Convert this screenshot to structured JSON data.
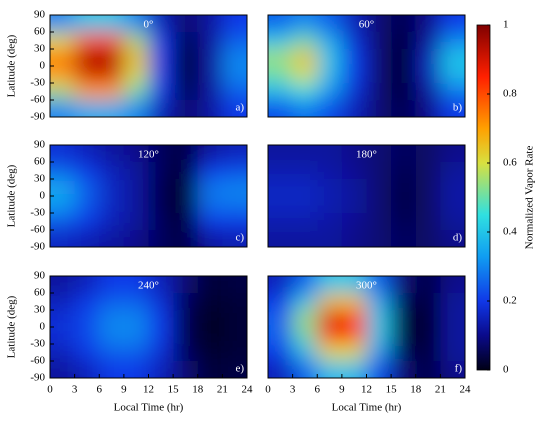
{
  "chart_data": [
    {
      "type": "heatmap",
      "title": "0°",
      "panel_label": "a)",
      "ylabel": "Latitude (deg)",
      "x": [
        1.5,
        4.5,
        7.5,
        10.5,
        13.5,
        16.5,
        19.5,
        22.5
      ],
      "y": [
        75,
        45,
        15,
        -15,
        -45,
        -75
      ],
      "xlim": [
        0,
        24
      ],
      "ylim": [
        -90,
        90
      ],
      "yticks": [
        -90,
        -60,
        -30,
        0,
        30,
        60,
        90
      ],
      "z": [
        [
          0.3,
          0.4,
          0.4,
          0.3,
          0.15,
          0.08,
          0.12,
          0.2
        ],
        [
          0.6,
          0.8,
          0.8,
          0.55,
          0.2,
          0.05,
          0.12,
          0.25
        ],
        [
          0.75,
          0.95,
          0.95,
          0.65,
          0.2,
          0.02,
          0.12,
          0.3
        ],
        [
          0.7,
          0.9,
          0.9,
          0.6,
          0.2,
          0.02,
          0.12,
          0.3
        ],
        [
          0.55,
          0.7,
          0.7,
          0.5,
          0.2,
          0.05,
          0.12,
          0.25
        ],
        [
          0.3,
          0.35,
          0.35,
          0.3,
          0.15,
          0.08,
          0.12,
          0.2
        ]
      ]
    },
    {
      "type": "heatmap",
      "title": "60°",
      "panel_label": "b)",
      "x": [
        1.5,
        4.5,
        7.5,
        10.5,
        13.5,
        16.5,
        19.5,
        22.5
      ],
      "y": [
        75,
        45,
        15,
        -15,
        -45,
        -75
      ],
      "xlim": [
        0,
        24
      ],
      "ylim": [
        -90,
        90
      ],
      "z": [
        [
          0.25,
          0.3,
          0.25,
          0.15,
          0.08,
          0.05,
          0.1,
          0.2
        ],
        [
          0.4,
          0.5,
          0.35,
          0.18,
          0.08,
          0.03,
          0.12,
          0.3
        ],
        [
          0.55,
          0.65,
          0.4,
          0.2,
          0.08,
          0.02,
          0.15,
          0.4
        ],
        [
          0.5,
          0.6,
          0.38,
          0.2,
          0.08,
          0.02,
          0.15,
          0.38
        ],
        [
          0.38,
          0.45,
          0.32,
          0.18,
          0.08,
          0.03,
          0.12,
          0.28
        ],
        [
          0.22,
          0.28,
          0.22,
          0.15,
          0.08,
          0.05,
          0.1,
          0.2
        ]
      ]
    },
    {
      "type": "heatmap",
      "title": "120°",
      "panel_label": "c)",
      "ylabel": "Latitude (deg)",
      "x": [
        1.5,
        4.5,
        7.5,
        10.5,
        13.5,
        16.5,
        19.5,
        22.5
      ],
      "y": [
        75,
        45,
        15,
        -15,
        -45,
        -75
      ],
      "xlim": [
        0,
        24
      ],
      "ylim": [
        -90,
        90
      ],
      "yticks": [
        -90,
        -60,
        -30,
        0,
        30,
        60,
        90
      ],
      "z": [
        [
          0.18,
          0.15,
          0.12,
          0.1,
          0.06,
          0.04,
          0.12,
          0.15
        ],
        [
          0.25,
          0.2,
          0.15,
          0.12,
          0.06,
          0.03,
          0.2,
          0.22
        ],
        [
          0.35,
          0.25,
          0.16,
          0.12,
          0.05,
          0.02,
          0.28,
          0.3
        ],
        [
          0.33,
          0.24,
          0.16,
          0.12,
          0.05,
          0.02,
          0.27,
          0.28
        ],
        [
          0.24,
          0.2,
          0.15,
          0.12,
          0.06,
          0.03,
          0.2,
          0.2
        ],
        [
          0.16,
          0.14,
          0.12,
          0.1,
          0.06,
          0.04,
          0.12,
          0.14
        ]
      ]
    },
    {
      "type": "heatmap",
      "title": "180°",
      "panel_label": "d)",
      "x": [
        1.5,
        4.5,
        7.5,
        10.5,
        13.5,
        16.5,
        19.5,
        22.5
      ],
      "y": [
        75,
        45,
        15,
        -15,
        -45,
        -75
      ],
      "xlim": [
        0,
        24
      ],
      "ylim": [
        -90,
        90
      ],
      "z": [
        [
          0.12,
          0.12,
          0.12,
          0.1,
          0.08,
          0.06,
          0.07,
          0.1
        ],
        [
          0.14,
          0.14,
          0.13,
          0.11,
          0.08,
          0.05,
          0.07,
          0.12
        ],
        [
          0.16,
          0.16,
          0.14,
          0.12,
          0.08,
          0.04,
          0.07,
          0.13
        ],
        [
          0.16,
          0.16,
          0.14,
          0.12,
          0.08,
          0.04,
          0.07,
          0.13
        ],
        [
          0.14,
          0.14,
          0.13,
          0.11,
          0.08,
          0.05,
          0.07,
          0.12
        ],
        [
          0.12,
          0.12,
          0.12,
          0.1,
          0.08,
          0.06,
          0.07,
          0.1
        ]
      ]
    },
    {
      "type": "heatmap",
      "title": "240°",
      "panel_label": "e)",
      "ylabel": "Latitude (deg)",
      "xlabel": "Local Time (hr)",
      "x": [
        1.5,
        4.5,
        7.5,
        10.5,
        13.5,
        16.5,
        19.5,
        22.5
      ],
      "y": [
        75,
        45,
        15,
        -15,
        -45,
        -75
      ],
      "xlim": [
        0,
        24
      ],
      "ylim": [
        -90,
        90
      ],
      "yticks": [
        -90,
        -60,
        -30,
        0,
        30,
        60,
        90
      ],
      "xticks": [
        0,
        3,
        6,
        9,
        12,
        15,
        18,
        21,
        24
      ],
      "z": [
        [
          0.12,
          0.15,
          0.2,
          0.2,
          0.15,
          0.08,
          0.03,
          0.04
        ],
        [
          0.15,
          0.2,
          0.25,
          0.25,
          0.18,
          0.06,
          0.02,
          0.03
        ],
        [
          0.18,
          0.22,
          0.3,
          0.3,
          0.2,
          0.05,
          0.01,
          0.03
        ],
        [
          0.18,
          0.22,
          0.3,
          0.3,
          0.2,
          0.05,
          0.01,
          0.03
        ],
        [
          0.15,
          0.2,
          0.25,
          0.25,
          0.18,
          0.06,
          0.02,
          0.03
        ],
        [
          0.12,
          0.15,
          0.2,
          0.2,
          0.15,
          0.08,
          0.03,
          0.04
        ]
      ]
    },
    {
      "type": "heatmap",
      "title": "300°",
      "panel_label": "f)",
      "xlabel": "Local Time (hr)",
      "x": [
        1.5,
        4.5,
        7.5,
        10.5,
        13.5,
        16.5,
        19.5,
        22.5
      ],
      "y": [
        75,
        45,
        15,
        -15,
        -45,
        -75
      ],
      "xlim": [
        0,
        24
      ],
      "ylim": [
        -90,
        90
      ],
      "xticks": [
        0,
        3,
        6,
        9,
        12,
        15,
        18,
        21,
        24
      ],
      "z": [
        [
          0.15,
          0.25,
          0.4,
          0.4,
          0.25,
          0.08,
          0.04,
          0.1
        ],
        [
          0.2,
          0.4,
          0.65,
          0.65,
          0.35,
          0.06,
          0.03,
          0.12
        ],
        [
          0.25,
          0.55,
          0.9,
          0.85,
          0.4,
          0.04,
          0.02,
          0.12
        ],
        [
          0.25,
          0.5,
          0.85,
          0.8,
          0.4,
          0.04,
          0.02,
          0.12
        ],
        [
          0.2,
          0.38,
          0.6,
          0.6,
          0.32,
          0.06,
          0.03,
          0.12
        ],
        [
          0.15,
          0.25,
          0.38,
          0.38,
          0.22,
          0.08,
          0.04,
          0.1
        ]
      ]
    }
  ],
  "colorbar": {
    "label": "Normalized Vapor Rate",
    "lim": [
      0,
      1
    ],
    "ticks": [
      0,
      0.2,
      0.4,
      0.6,
      0.8,
      1
    ],
    "colormap": [
      {
        "value": 0,
        "color": "#000016"
      },
      {
        "value": 0.1,
        "color": "#0a0a8a"
      },
      {
        "value": 0.2,
        "color": "#1038e8"
      },
      {
        "value": 0.33,
        "color": "#109ef2"
      },
      {
        "value": 0.45,
        "color": "#30e0e0"
      },
      {
        "value": 0.6,
        "color": "#d8e040"
      },
      {
        "value": 0.7,
        "color": "#ffa000"
      },
      {
        "value": 0.85,
        "color": "#ff2000"
      },
      {
        "value": 1,
        "color": "#800000"
      }
    ]
  }
}
